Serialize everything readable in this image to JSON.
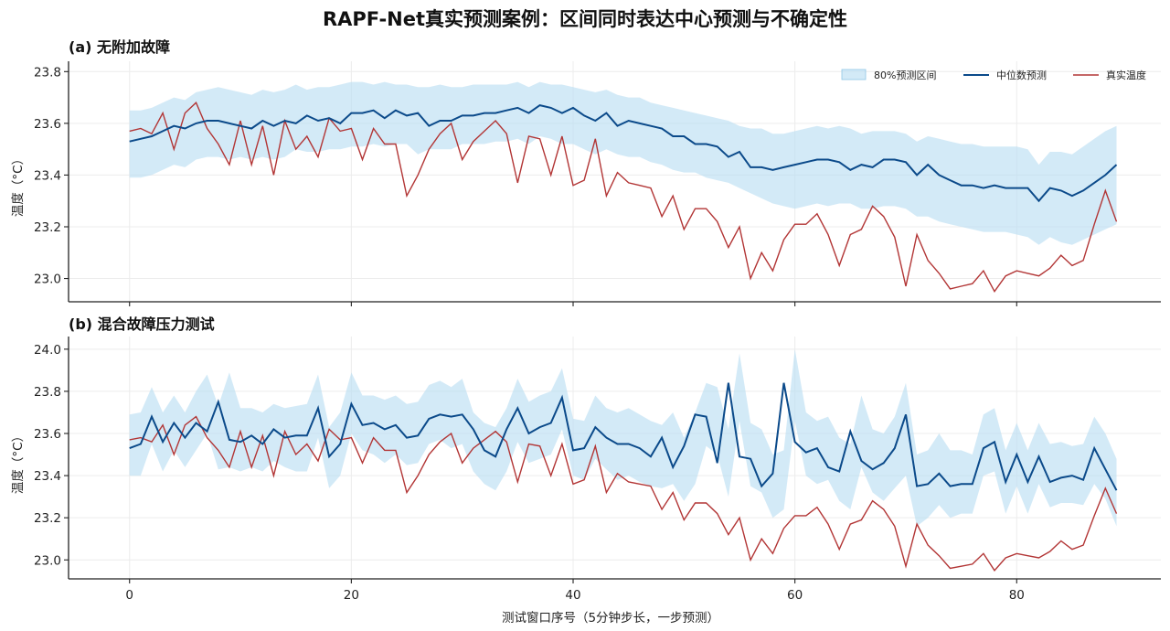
{
  "figure": {
    "title": "RAPF-Net真实预测案例：区间同时表达中心预测与不确定性",
    "xlabel": "测试窗口序号（5分钟步长，一步预测）",
    "colors": {
      "band": "#bcdff3",
      "median": "#0b4a8a",
      "truth": "#b23535",
      "grid": "#ececec",
      "axis": "#222222"
    }
  },
  "legend": {
    "placement": "top-right",
    "items": [
      {
        "label": "80%预测区间",
        "kind": "band"
      },
      {
        "label": "中位数预测",
        "kind": "median"
      },
      {
        "label": "真实温度",
        "kind": "truth"
      }
    ]
  },
  "chart_data": [
    {
      "type": "line",
      "title": "(a) 无附加故障",
      "ylabel": "温度（°C）",
      "xlim": [
        -5.5,
        93
      ],
      "ylim": [
        22.91,
        23.84
      ],
      "xticks": [
        0,
        20,
        40,
        60,
        80
      ],
      "yticks": [
        23.0,
        23.2,
        23.4,
        23.6,
        23.8
      ],
      "grid": true,
      "band_lower": [
        23.39,
        23.39,
        23.4,
        23.42,
        23.44,
        23.43,
        23.46,
        23.47,
        23.47,
        23.46,
        23.47,
        23.46,
        23.47,
        23.46,
        23.47,
        23.5,
        23.49,
        23.49,
        23.5,
        23.5,
        23.51,
        23.51,
        23.52,
        23.51,
        23.52,
        23.52,
        23.48,
        23.5,
        23.5,
        23.5,
        23.52,
        23.52,
        23.52,
        23.53,
        23.53,
        23.54,
        23.52,
        23.55,
        23.54,
        23.52,
        23.52,
        23.5,
        23.48,
        23.5,
        23.48,
        23.47,
        23.47,
        23.45,
        23.44,
        23.42,
        23.41,
        23.41,
        23.39,
        23.38,
        23.37,
        23.35,
        23.33,
        23.31,
        23.29,
        23.28,
        23.27,
        23.28,
        23.29,
        23.28,
        23.29,
        23.29,
        23.27,
        23.27,
        23.28,
        23.28,
        23.27,
        23.24,
        23.24,
        23.22,
        23.21,
        23.2,
        23.19,
        23.18,
        23.18,
        23.18,
        23.17,
        23.16,
        23.13,
        23.16,
        23.14,
        23.13,
        23.15,
        23.17,
        23.19,
        23.21
      ],
      "band_upper": [
        23.65,
        23.65,
        23.66,
        23.68,
        23.7,
        23.69,
        23.72,
        23.73,
        23.74,
        23.73,
        23.72,
        23.71,
        23.73,
        23.72,
        23.73,
        23.75,
        23.73,
        23.74,
        23.74,
        23.75,
        23.76,
        23.76,
        23.75,
        23.76,
        23.75,
        23.75,
        23.74,
        23.74,
        23.75,
        23.74,
        23.74,
        23.75,
        23.75,
        23.75,
        23.75,
        23.76,
        23.74,
        23.76,
        23.75,
        23.75,
        23.74,
        23.73,
        23.72,
        23.73,
        23.71,
        23.7,
        23.7,
        23.68,
        23.67,
        23.66,
        23.65,
        23.64,
        23.63,
        23.62,
        23.61,
        23.59,
        23.58,
        23.58,
        23.56,
        23.56,
        23.57,
        23.58,
        23.59,
        23.58,
        23.59,
        23.58,
        23.56,
        23.57,
        23.57,
        23.57,
        23.56,
        23.53,
        23.55,
        23.54,
        23.53,
        23.52,
        23.52,
        23.51,
        23.51,
        23.51,
        23.51,
        23.5,
        23.44,
        23.49,
        23.49,
        23.48,
        23.51,
        23.54,
        23.57,
        23.59
      ],
      "series": [
        {
          "name": "中位数预测",
          "values": [
            23.53,
            23.54,
            23.55,
            23.57,
            23.59,
            23.58,
            23.6,
            23.61,
            23.61,
            23.6,
            23.59,
            23.58,
            23.61,
            23.59,
            23.61,
            23.6,
            23.63,
            23.61,
            23.62,
            23.6,
            23.64,
            23.64,
            23.65,
            23.62,
            23.65,
            23.63,
            23.64,
            23.59,
            23.61,
            23.61,
            23.63,
            23.63,
            23.64,
            23.64,
            23.65,
            23.66,
            23.64,
            23.67,
            23.66,
            23.64,
            23.66,
            23.63,
            23.61,
            23.64,
            23.59,
            23.61,
            23.6,
            23.59,
            23.58,
            23.55,
            23.55,
            23.52,
            23.52,
            23.51,
            23.47,
            23.49,
            23.43,
            23.43,
            23.42,
            23.43,
            23.44,
            23.45,
            23.46,
            23.46,
            23.45,
            23.42,
            23.44,
            23.43,
            23.46,
            23.46,
            23.45,
            23.4,
            23.44,
            23.4,
            23.38,
            23.36,
            23.36,
            23.35,
            23.36,
            23.35,
            23.35,
            23.35,
            23.3,
            23.35,
            23.34,
            23.32,
            23.34,
            23.37,
            23.4,
            23.44
          ]
        },
        {
          "name": "真实温度",
          "values": [
            23.57,
            23.58,
            23.56,
            23.64,
            23.5,
            23.64,
            23.68,
            23.58,
            23.52,
            23.44,
            23.61,
            23.44,
            23.59,
            23.4,
            23.61,
            23.5,
            23.55,
            23.47,
            23.62,
            23.57,
            23.58,
            23.46,
            23.58,
            23.52,
            23.52,
            23.32,
            23.4,
            23.5,
            23.56,
            23.6,
            23.46,
            23.53,
            23.57,
            23.61,
            23.56,
            23.37,
            23.55,
            23.54,
            23.4,
            23.55,
            23.36,
            23.38,
            23.54,
            23.32,
            23.41,
            23.37,
            23.36,
            23.35,
            23.24,
            23.32,
            23.19,
            23.27,
            23.27,
            23.22,
            23.12,
            23.2,
            23.0,
            23.1,
            23.03,
            23.15,
            23.21,
            23.21,
            23.25,
            23.17,
            23.05,
            23.17,
            23.19,
            23.28,
            23.24,
            23.16,
            22.97,
            23.17,
            23.07,
            23.02,
            22.96,
            22.97,
            22.98,
            23.03,
            22.95,
            23.01,
            23.03,
            23.02,
            23.01,
            23.04,
            23.09,
            23.05,
            23.07,
            23.21,
            23.34,
            23.22
          ]
        }
      ]
    },
    {
      "type": "line",
      "title": "(b) 混合故障压力测试",
      "ylabel": "温度（°C）",
      "xlim": [
        -5.5,
        93
      ],
      "ylim": [
        22.91,
        24.06
      ],
      "xticks": [
        0,
        20,
        40,
        60,
        80
      ],
      "yticks": [
        23.0,
        23.2,
        23.4,
        23.6,
        23.8,
        24.0
      ],
      "grid": true,
      "band_lower": [
        23.4,
        23.4,
        23.55,
        23.42,
        23.52,
        23.44,
        23.52,
        23.6,
        23.43,
        23.44,
        23.42,
        23.44,
        23.42,
        23.47,
        23.44,
        23.42,
        23.42,
        23.58,
        23.34,
        23.4,
        23.6,
        23.52,
        23.5,
        23.46,
        23.5,
        23.45,
        23.46,
        23.55,
        23.57,
        23.53,
        23.55,
        23.42,
        23.36,
        23.33,
        23.42,
        23.56,
        23.46,
        23.48,
        23.5,
        23.62,
        23.4,
        23.38,
        23.48,
        23.43,
        23.38,
        23.4,
        23.37,
        23.35,
        23.34,
        23.36,
        23.28,
        23.36,
        23.54,
        23.5,
        23.3,
        23.66,
        23.35,
        23.32,
        23.2,
        23.24,
        23.66,
        23.4,
        23.36,
        23.38,
        23.28,
        23.24,
        23.44,
        23.32,
        23.28,
        23.34,
        23.4,
        23.16,
        23.2,
        23.26,
        23.2,
        23.22,
        23.22,
        23.4,
        23.42,
        23.22,
        23.35,
        23.22,
        23.36,
        23.25,
        23.27,
        23.27,
        23.26,
        23.36,
        23.29,
        23.16
      ],
      "band_upper": [
        23.69,
        23.7,
        23.82,
        23.7,
        23.78,
        23.7,
        23.8,
        23.88,
        23.73,
        23.89,
        23.72,
        23.72,
        23.7,
        23.74,
        23.72,
        23.73,
        23.74,
        23.88,
        23.63,
        23.7,
        23.89,
        23.78,
        23.78,
        23.76,
        23.78,
        23.74,
        23.75,
        23.83,
        23.85,
        23.82,
        23.86,
        23.7,
        23.65,
        23.63,
        23.72,
        23.86,
        23.75,
        23.78,
        23.8,
        23.91,
        23.67,
        23.66,
        23.78,
        23.72,
        23.7,
        23.72,
        23.69,
        23.66,
        23.64,
        23.7,
        23.58,
        23.7,
        23.84,
        23.82,
        23.62,
        23.98,
        23.65,
        23.62,
        23.5,
        23.52,
        24.0,
        23.7,
        23.66,
        23.68,
        23.58,
        23.55,
        23.78,
        23.62,
        23.6,
        23.68,
        23.84,
        23.5,
        23.52,
        23.6,
        23.52,
        23.52,
        23.5,
        23.69,
        23.72,
        23.52,
        23.65,
        23.52,
        23.65,
        23.55,
        23.56,
        23.54,
        23.55,
        23.68,
        23.6,
        23.48
      ],
      "series": [
        {
          "name": "中位数预测",
          "values": [
            23.53,
            23.55,
            23.68,
            23.56,
            23.65,
            23.58,
            23.65,
            23.61,
            23.75,
            23.57,
            23.56,
            23.59,
            23.55,
            23.62,
            23.58,
            23.59,
            23.59,
            23.72,
            23.49,
            23.55,
            23.74,
            23.64,
            23.65,
            23.62,
            23.64,
            23.58,
            23.59,
            23.67,
            23.69,
            23.68,
            23.69,
            23.62,
            23.52,
            23.49,
            23.62,
            23.72,
            23.6,
            23.63,
            23.65,
            23.77,
            23.52,
            23.53,
            23.63,
            23.58,
            23.55,
            23.55,
            23.53,
            23.49,
            23.58,
            23.44,
            23.54,
            23.69,
            23.68,
            23.46,
            23.84,
            23.49,
            23.48,
            23.35,
            23.41,
            23.84,
            23.56,
            23.51,
            23.53,
            23.44,
            23.42,
            23.61,
            23.47,
            23.43,
            23.46,
            23.53,
            23.69,
            23.35,
            23.36,
            23.41,
            23.35,
            23.36,
            23.36,
            23.53,
            23.56,
            23.37,
            23.5,
            23.37,
            23.49,
            23.37,
            23.39,
            23.4,
            23.38,
            23.53,
            23.43,
            23.33
          ]
        },
        {
          "name": "真实温度",
          "values": [
            23.57,
            23.58,
            23.56,
            23.64,
            23.5,
            23.64,
            23.68,
            23.58,
            23.52,
            23.44,
            23.61,
            23.44,
            23.59,
            23.4,
            23.61,
            23.5,
            23.55,
            23.47,
            23.62,
            23.57,
            23.58,
            23.46,
            23.58,
            23.52,
            23.52,
            23.32,
            23.4,
            23.5,
            23.56,
            23.6,
            23.46,
            23.53,
            23.57,
            23.61,
            23.56,
            23.37,
            23.55,
            23.54,
            23.4,
            23.55,
            23.36,
            23.38,
            23.54,
            23.32,
            23.41,
            23.37,
            23.36,
            23.35,
            23.24,
            23.32,
            23.19,
            23.27,
            23.27,
            23.22,
            23.12,
            23.2,
            23.0,
            23.1,
            23.03,
            23.15,
            23.21,
            23.21,
            23.25,
            23.17,
            23.05,
            23.17,
            23.19,
            23.28,
            23.24,
            23.16,
            22.97,
            23.17,
            23.07,
            23.02,
            22.96,
            22.97,
            22.98,
            23.03,
            22.95,
            23.01,
            23.03,
            23.02,
            23.01,
            23.04,
            23.09,
            23.05,
            23.07,
            23.21,
            23.34,
            23.22
          ]
        }
      ]
    }
  ]
}
